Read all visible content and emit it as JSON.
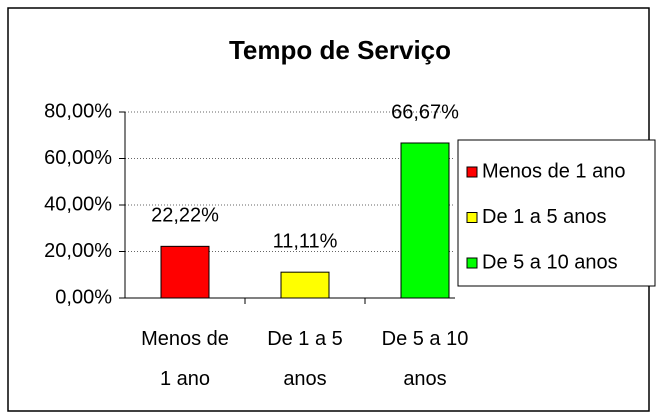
{
  "chart_data": {
    "type": "bar",
    "title": "Tempo de Serviço",
    "categories": [
      "Menos de 1 ano",
      "De 1 a 5 anos",
      "De 5 a 10 anos"
    ],
    "values": [
      22.22,
      11.11,
      66.67
    ],
    "value_labels": [
      "22,22%",
      "11,11%",
      "66,67%"
    ],
    "colors": [
      "#ff0000",
      "#ffff00",
      "#00ff00"
    ],
    "ylim": [
      0,
      80
    ],
    "yticks": [
      {
        "value": 0,
        "label": "0,00%"
      },
      {
        "value": 20,
        "label": "20,00%"
      },
      {
        "value": 40,
        "label": "40,00%"
      },
      {
        "value": 60,
        "label": "60,00%"
      },
      {
        "value": 80,
        "label": "80,00%"
      }
    ],
    "grid": true,
    "legend": "right"
  }
}
